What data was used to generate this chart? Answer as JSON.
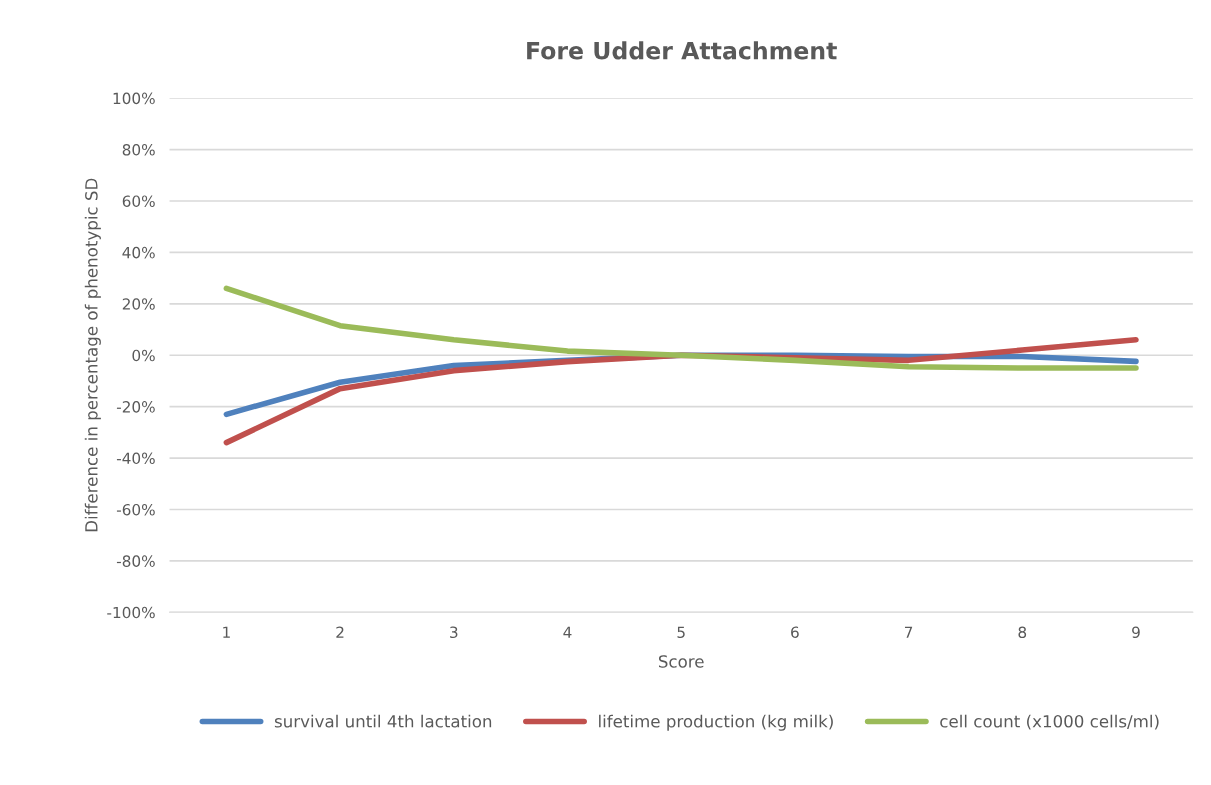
{
  "chart_data": {
    "type": "line",
    "title": "Fore Udder Attachment",
    "xlabel": "Score",
    "ylabel": "Difference in percentage of phenotypic SD",
    "categories": [
      "1",
      "2",
      "3",
      "4",
      "5",
      "6",
      "7",
      "8",
      "9"
    ],
    "series": [
      {
        "name": "survival until 4th lactation",
        "color": "#4f81bd",
        "values": [
          -23,
          -10.5,
          -4,
          -2,
          0,
          0,
          -0.5,
          -0.5,
          -2.4
        ]
      },
      {
        "name": "lifetime production (kg milk)",
        "color": "#c0504d",
        "values": [
          -34,
          -13,
          -6,
          -2.5,
          0,
          -1,
          -2,
          2,
          6
        ]
      },
      {
        "name": "cell count (x1000 cells/ml)",
        "color": "#9bbb59",
        "values": [
          26,
          11.5,
          6,
          1.6,
          0,
          -2,
          -4.5,
          -5,
          -5
        ]
      }
    ],
    "ylim": [
      -100,
      100
    ],
    "yticks": [
      {
        "value": -100,
        "label": "-100%"
      },
      {
        "value": -80,
        "label": "-80%"
      },
      {
        "value": -60,
        "label": "-60%"
      },
      {
        "value": -40,
        "label": "-40%"
      },
      {
        "value": -20,
        "label": "-20%"
      },
      {
        "value": 0,
        "label": "0%"
      },
      {
        "value": 20,
        "label": "20%"
      },
      {
        "value": 40,
        "label": "40%"
      },
      {
        "value": 60,
        "label": "60%"
      },
      {
        "value": 80,
        "label": "80%"
      },
      {
        "value": 100,
        "label": "100%"
      }
    ],
    "grid": "y",
    "legend": "bottom",
    "marker": "none",
    "line_style": "solid"
  }
}
